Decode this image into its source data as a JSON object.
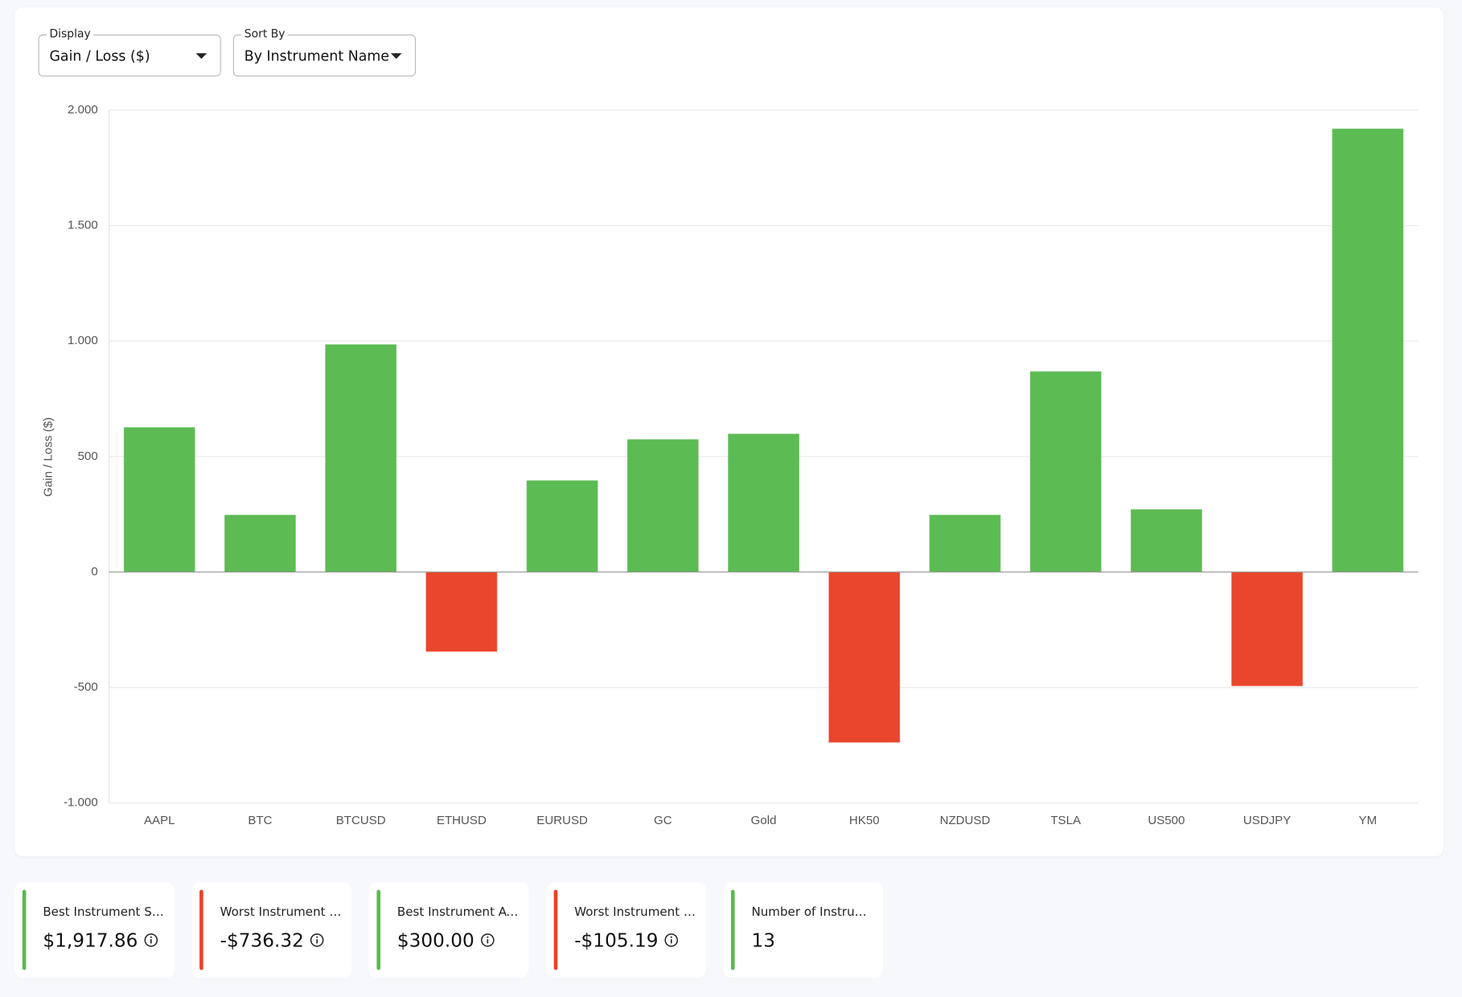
{
  "controls": {
    "display": {
      "label": "Display",
      "value": "Gain / Loss ($)"
    },
    "sort": {
      "label": "Sort By",
      "value": "By Instrument Name"
    }
  },
  "chart_data": {
    "type": "bar",
    "y_label": "Gain / Loss ($)",
    "categories": [
      "AAPL",
      "BTC",
      "BTCUSD",
      "ETHUSD",
      "EURUSD",
      "GC",
      "Gold",
      "HK50",
      "NZDUSD",
      "TSLA",
      "US500",
      "USDJPY",
      "YM"
    ],
    "values": [
      625,
      246,
      984,
      -343,
      395,
      573,
      597,
      -736.32,
      246,
      867,
      270,
      -492,
      1917.86
    ],
    "positive_color": "#5aba50",
    "negative_color": "#e94229",
    "ylim": [
      -1000,
      2000
    ],
    "yticks": [
      {
        "value": -1000,
        "label": "-1.000"
      },
      -500,
      0,
      500,
      {
        "value": 1000,
        "label": "1.000"
      },
      {
        "value": 1500,
        "label": "1.500"
      },
      {
        "value": 2000,
        "label": "2.000"
      }
    ],
    "grid": true
  },
  "cards": [
    {
      "label": "Best Instrument Sum",
      "value": "$1,917.86",
      "accent": "#5aba50",
      "info": true
    },
    {
      "label": "Worst Instrument Sum",
      "value": "-$736.32",
      "accent": "#e94229",
      "info": true
    },
    {
      "label": "Best Instrument Avg",
      "value": "$300.00",
      "accent": "#5aba50",
      "info": true
    },
    {
      "label": "Worst Instrument Avg",
      "value": "-$105.19",
      "accent": "#e94229",
      "info": true
    },
    {
      "label": "Number of Instruments",
      "value": "13",
      "accent": "#5aba50",
      "info": false
    }
  ]
}
